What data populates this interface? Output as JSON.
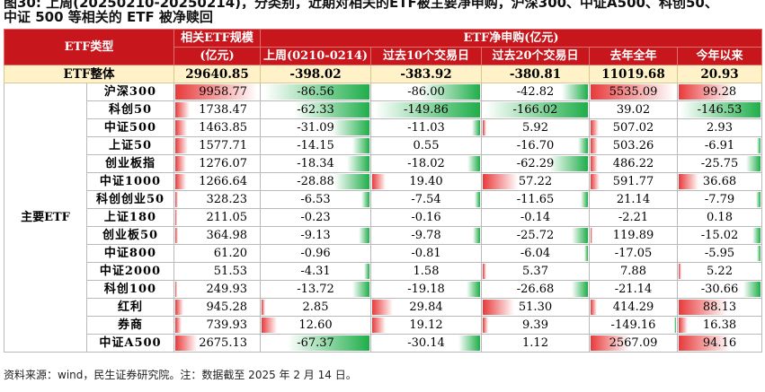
{
  "caption": {
    "line1": "图30: 上周(20250210-20250214)，分类别，近期对相关的ETF被主要净申购，沪深300、中证A500、科创50、",
    "line2": "中证 500 等相关的 ETF 被净赎回"
  },
  "headers": {
    "type": "ETF类型",
    "size": "相关ETF规模",
    "size_unit": "(亿元)",
    "netflow": "ETF净申购(亿元)",
    "cols": [
      "上周(0210-0214)",
      "过去10个交易日",
      "过去20个交易日",
      "去年全年",
      "今年以来"
    ]
  },
  "total": {
    "label": "ETF整体",
    "values": [
      "29640.85",
      "-398.02",
      "-383.92",
      "-380.81",
      "11019.68",
      "20.93"
    ]
  },
  "group_label": "主要ETF",
  "rows": [
    {
      "name": "沪深300",
      "values": [
        "9958.77",
        "-86.56",
        "-86.00",
        "-42.82",
        "5535.09",
        "99.28"
      ]
    },
    {
      "name": "科创50",
      "values": [
        "1738.47",
        "-62.33",
        "-149.86",
        "-166.02",
        "39.02",
        "-146.53"
      ]
    },
    {
      "name": "中证500",
      "values": [
        "1463.85",
        "-31.09",
        "-11.03",
        "5.92",
        "507.02",
        "2.93"
      ]
    },
    {
      "name": "上证50",
      "values": [
        "1577.71",
        "-14.15",
        "0.55",
        "-16.70",
        "503.26",
        "-6.91"
      ]
    },
    {
      "name": "创业板指",
      "values": [
        "1276.07",
        "-18.34",
        "-18.02",
        "-62.29",
        "486.22",
        "-25.75"
      ]
    },
    {
      "name": "中证1000",
      "values": [
        "1266.64",
        "-28.88",
        "19.40",
        "57.22",
        "591.77",
        "36.68"
      ]
    },
    {
      "name": "科创创业50",
      "values": [
        "328.23",
        "-6.53",
        "-7.54",
        "-11.65",
        "21.14",
        "-7.79"
      ]
    },
    {
      "name": "上证180",
      "values": [
        "211.05",
        "-0.23",
        "-0.16",
        "-0.14",
        "-2.21",
        "0.18"
      ]
    },
    {
      "name": "创业板50",
      "values": [
        "364.98",
        "-9.13",
        "-9.78",
        "-25.72",
        "119.89",
        "-15.02"
      ]
    },
    {
      "name": "中证800",
      "values": [
        "61.20",
        "-0.96",
        "-0.81",
        "-6.04",
        "-17.05",
        "-5.95"
      ]
    },
    {
      "name": "中证2000",
      "values": [
        "51.53",
        "-4.31",
        "1.58",
        "5.37",
        "7.88",
        "5.22"
      ]
    },
    {
      "name": "科创100",
      "values": [
        "249.93",
        "-13.72",
        "-19.18",
        "-26.68",
        "-21.14",
        "-30.66"
      ]
    },
    {
      "name": "红利",
      "values": [
        "945.28",
        "2.85",
        "29.84",
        "51.30",
        "414.29",
        "88.13"
      ]
    },
    {
      "name": "券商",
      "values": [
        "739.93",
        "12.60",
        "19.12",
        "9.39",
        "-149.16",
        "16.38"
      ]
    },
    {
      "name": "中证A500",
      "values": [
        "2675.13",
        "-67.37",
        "-30.14",
        "1.12",
        "2567.09",
        "94.16"
      ]
    }
  ],
  "colors": {
    "header": "#c8161d",
    "total_bg": "#fff2c8",
    "positive": "#e83a3a",
    "negative": "#1fae4a"
  },
  "source": "资料来源：wind，民生证券研究院。注：数据截至 2025 年 2 月 14 日。"
}
